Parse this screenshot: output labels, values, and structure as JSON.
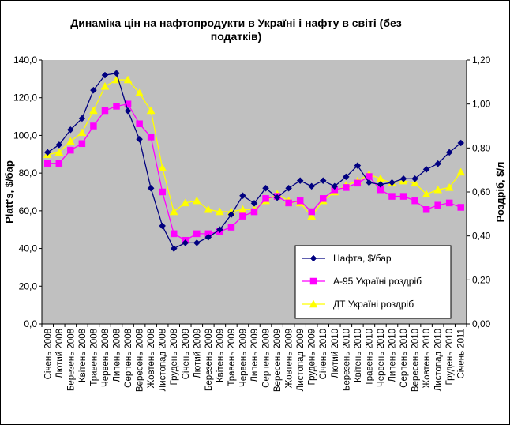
{
  "chart_data": {
    "type": "line",
    "title_lines": [
      "Динаміка цін на нафтопродукти  в Україні  і нафту в світі (без",
      "податків)"
    ],
    "ylabel_left": "Platt's, $/бар",
    "ylabel_right": "Роздріб, $/л",
    "ylim_left": [
      0,
      140
    ],
    "ylim_right": [
      0,
      1.2
    ],
    "yticks_left": [
      "0,0",
      "20,0",
      "40,0",
      "60,0",
      "80,0",
      "100,0",
      "120,0",
      "140,0"
    ],
    "yticks_right": [
      "0,00",
      "0,20",
      "0,40",
      "0,60",
      "0,80",
      "1,00",
      "1,20"
    ],
    "grid": false,
    "plot_background": "#c0c0c0",
    "legend_position": "bottom-right inside plot",
    "categories": [
      "Січень 2008",
      "Лютий 2008",
      "Березень 2008",
      "Квітень 2008",
      "Травень 2008",
      "Червень 2008",
      "Липень 2008",
      "Серпень 2008",
      "Вересень 2008",
      "Жовтень 2008",
      "Листопад 2008",
      "Грудень 2008",
      "Січень 2009",
      "Лютий 2009",
      "Березень 2009",
      "Квітень 2009",
      "Травень 2009",
      "Червень 2009",
      "Липень 2009",
      "Серпень 2009",
      "Вересень 2009",
      "Жовтень 2009",
      "Листопад 2009",
      "Грудень 2009",
      "Січень 2010",
      "Лютий 2010",
      "Березень 2010",
      "Квітень 2010",
      "Травень 2010",
      "Червень 2010",
      "Липень 2010",
      "Серпень 2010",
      "Вересень 2010",
      "Жовтень 2010",
      "Листопад 2010",
      "Грудень 2010",
      "Січень 2011"
    ],
    "series": [
      {
        "name": "Нафта, $/бар",
        "axis": "left",
        "color": "#000080",
        "marker": "diamond",
        "values": [
          91,
          95,
          103,
          109,
          124,
          132,
          133,
          113,
          98,
          72,
          52,
          40,
          43,
          43,
          46,
          50,
          58,
          68,
          64,
          72,
          67,
          72,
          76,
          73,
          76,
          73,
          78,
          84,
          75,
          74,
          75,
          77,
          77,
          82,
          85,
          91,
          96
        ]
      },
      {
        "name": "А-95 Україні роздріб",
        "axis": "right",
        "color": "#ff00ff",
        "marker": "square",
        "values": [
          0.73,
          0.73,
          0.79,
          0.82,
          0.9,
          0.97,
          0.99,
          1.0,
          0.91,
          0.85,
          0.6,
          0.41,
          0.38,
          0.41,
          0.41,
          0.42,
          0.44,
          0.49,
          0.51,
          0.57,
          0.58,
          0.55,
          0.56,
          0.51,
          0.57,
          0.61,
          0.62,
          0.64,
          0.67,
          0.61,
          0.58,
          0.58,
          0.56,
          0.52,
          0.54,
          0.55,
          0.53
        ]
      },
      {
        "name": "ДТ Україні роздріб",
        "axis": "right",
        "color": "#ffff00",
        "marker": "triangle",
        "values": [
          0.77,
          0.78,
          0.83,
          0.87,
          0.97,
          1.08,
          1.11,
          1.11,
          1.05,
          0.97,
          0.71,
          0.51,
          0.55,
          0.56,
          0.52,
          0.51,
          0.51,
          0.52,
          0.52,
          0.56,
          0.59,
          0.56,
          0.55,
          0.49,
          0.56,
          0.6,
          0.63,
          0.65,
          0.68,
          0.66,
          0.64,
          0.65,
          0.64,
          0.59,
          0.61,
          0.62,
          0.69
        ]
      }
    ]
  }
}
